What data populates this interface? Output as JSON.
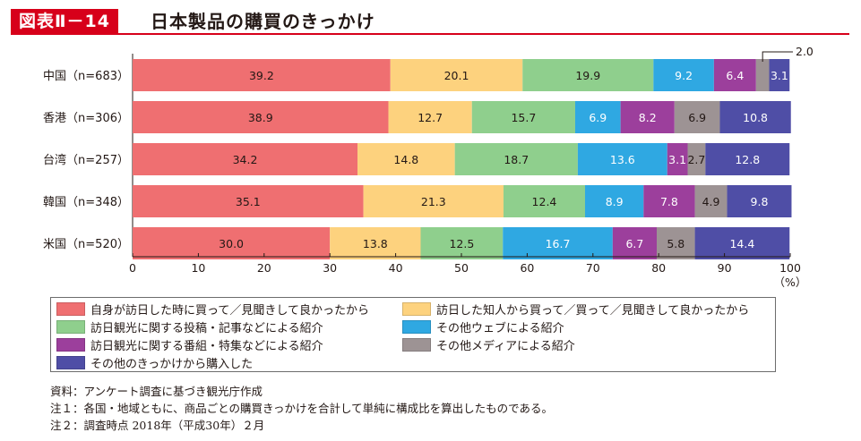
{
  "header": {
    "figure_label": "図表Ⅱ－14",
    "title": "日本製品の購買のきっかけ"
  },
  "chart_data": {
    "type": "bar",
    "orientation": "horizontal",
    "stacked": true,
    "categories": [
      "中国（n=683）",
      "香港（n=306）",
      "台湾（n=257）",
      "韓国（n=348）",
      "米国（n=520）"
    ],
    "series": [
      {
        "name": "自身が訪日した時に買って／見聞きして良かったから",
        "color": "#ef6f71",
        "values": [
          39.2,
          38.9,
          34.2,
          35.1,
          30.0
        ],
        "labels": [
          "39.2",
          "38.9",
          "34.2",
          "35.1",
          "30.0"
        ]
      },
      {
        "name": "訪日した知人から買って／買って／見聞きして良かったから",
        "color": "#fdd27e",
        "values": [
          20.1,
          12.7,
          14.8,
          21.3,
          13.8
        ],
        "labels": [
          "20.1",
          "12.7",
          "14.8",
          "21.3",
          "13.8"
        ]
      },
      {
        "name": "訪日観光に関する投稿・記事などによる紹介",
        "color": "#8fcf8d",
        "values": [
          19.9,
          15.7,
          18.7,
          12.4,
          12.5
        ],
        "labels": [
          "19.9",
          "15.7",
          "18.7",
          "12.4",
          "12.5"
        ]
      },
      {
        "name": "その他ウェブによる紹介",
        "color": "#2fa8e2",
        "values": [
          9.2,
          6.9,
          13.6,
          8.9,
          16.7
        ],
        "labels": [
          "9.2",
          "6.9",
          "13.6",
          "8.9",
          "16.7"
        ]
      },
      {
        "name": "訪日観光に関する番組・特集などによる紹介",
        "color": "#9c3f9c",
        "values": [
          6.4,
          8.2,
          3.1,
          7.8,
          6.7
        ],
        "labels": [
          "6.4",
          "8.2",
          "3.1",
          "7.8",
          "6.7"
        ]
      },
      {
        "name": "その他メディアによる紹介",
        "color": "#9d9394",
        "values": [
          2.0,
          6.9,
          2.7,
          4.9,
          5.8
        ],
        "labels": [
          "",
          "6.9",
          "2.7",
          "4.9",
          "5.8"
        ]
      },
      {
        "name": "その他のきっかけから購入した",
        "color": "#4f4ea6",
        "values": [
          3.1,
          10.8,
          12.8,
          9.8,
          14.4
        ],
        "labels": [
          "3.1",
          "10.8",
          "12.8",
          "9.8",
          "14.4"
        ]
      }
    ],
    "callout": {
      "category": "中国（n=683）",
      "series": "その他メディアによる紹介",
      "text": "2.0"
    },
    "xlim": [
      0,
      100
    ],
    "xticks": [
      "0",
      "10",
      "20",
      "30",
      "40",
      "50",
      "60",
      "70",
      "80",
      "90",
      "100"
    ],
    "xunit": "（%）",
    "grid": false,
    "legend_position": "bottom"
  },
  "legend": {
    "items": [
      {
        "label": "自身が訪日した時に買って／見聞きして良かったから",
        "color": "#ef6f71"
      },
      {
        "label": "訪日した知人から買って／買って／見聞きして良かったから",
        "color": "#fdd27e"
      },
      {
        "label": "訪日観光に関する投稿・記事などによる紹介",
        "color": "#8fcf8d"
      },
      {
        "label": "その他ウェブによる紹介",
        "color": "#2fa8e2"
      },
      {
        "label": "訪日観光に関する番組・特集などによる紹介",
        "color": "#9c3f9c"
      },
      {
        "label": "その他メディアによる紹介",
        "color": "#9d9394"
      },
      {
        "label": "その他のきっかけから購入した",
        "color": "#4f4ea6"
      }
    ]
  },
  "notes": {
    "source": "資料：アンケート調査に基づき観光庁作成",
    "note1": "注１：各国・地域ともに、商品ごとの購買きっかけを合計して単純に構成比を算出したものである。",
    "note2": "注２：調査時点 2018年（平成30年）２月"
  }
}
